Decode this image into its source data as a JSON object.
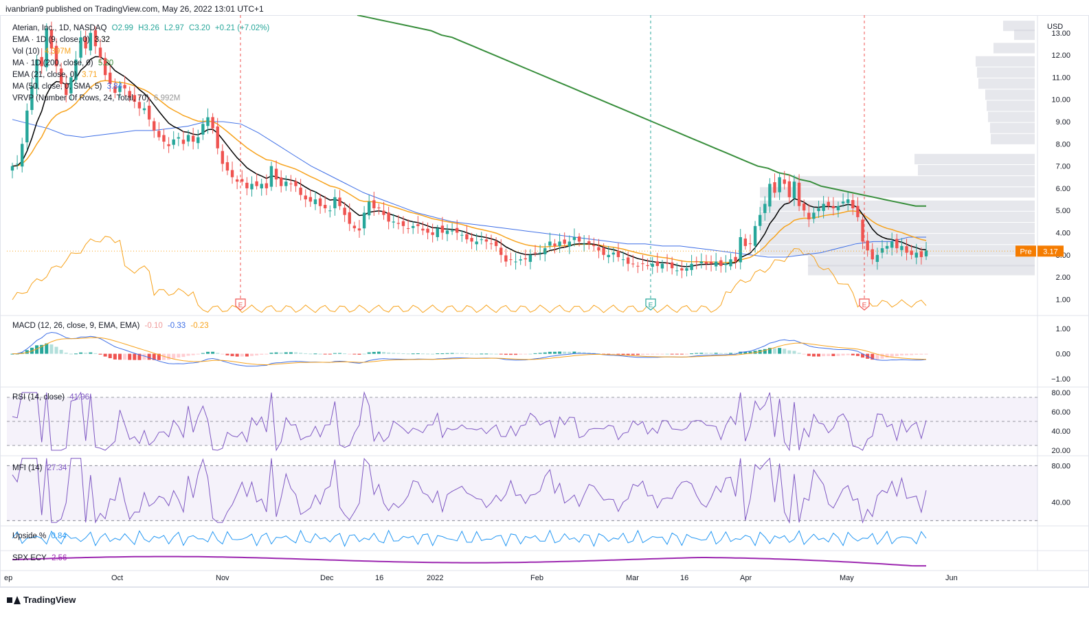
{
  "header": {
    "publisher": "ivanbrian9 published on TradingView.com, May 26, 2022 13:01 UTC+1"
  },
  "brand": {
    "name": "TradingView"
  },
  "colors": {
    "up": "#26a69a",
    "down": "#ef5350",
    "ema9": "#000000",
    "ema21": "#f7a21b",
    "ma50": "#3d6ee6",
    "ma200": "#388e3c",
    "vol": "#f7a21b",
    "rsi": "#7e57c2",
    "mfi": "#7e57c2",
    "upside": "#2196f3",
    "ecy": "#9c27b0",
    "vrvp": "#d1d4dc"
  },
  "legend": {
    "symbol_line": {
      "title": "Aterian, Inc., 1D, NASDAQ",
      "open": "O2.99",
      "high": "H3.26",
      "low": "L2.97",
      "close": "C3.20",
      "change": "+0.21 (+7.02%)"
    },
    "ema9": {
      "label": "EMA · 1D (9, close, 0)",
      "value": "3.32"
    },
    "vol": {
      "label": "Vol (10)",
      "value": "4.397M"
    },
    "ma200": {
      "label": "MA · 1D (200, close, 0)",
      "value": "5.20"
    },
    "ema21": {
      "label": "EMA (21, close, 0)",
      "value": "3.71"
    },
    "ma50": {
      "label": "MA (50, close, 0, SMA, 5)",
      "value": "3.84"
    },
    "vrvp": {
      "label": "VRVP (Number Of Rows, 24, Total, 70)",
      "value": "6.992M"
    },
    "macd": {
      "label": "MACD (12, 26, close, 9, EMA, EMA)",
      "hist": "-0.10",
      "macd": "-0.33",
      "signal": "-0.23"
    },
    "rsi": {
      "label": "RSI (14, close)",
      "value": "41.96"
    },
    "mfi": {
      "label": "MFI (14)",
      "value": "27.34"
    },
    "upside": {
      "label": "Upside %",
      "value": "0.84"
    },
    "ecy": {
      "label": "SPX ECY",
      "value": "2.56"
    }
  },
  "price_axis": {
    "currency": "USD",
    "ticks": [
      "13.00",
      "12.00",
      "11.00",
      "10.00",
      "9.00",
      "8.00",
      "7.00",
      "6.00",
      "5.00",
      "4.00",
      "3.00",
      "2.00",
      "1.00"
    ]
  },
  "pre_badge": {
    "label": "Pre",
    "value": "3.17"
  },
  "macd_axis": {
    "ticks": [
      "1.00",
      "0.00",
      "−1.00"
    ]
  },
  "rsi_axis": {
    "ticks": [
      "80.00",
      "60.00",
      "40.00",
      "20.00"
    ]
  },
  "mfi_axis": {
    "ticks": [
      "80.00",
      "40.00"
    ]
  },
  "time_axis": {
    "labels": [
      "ep",
      "Oct",
      "Nov",
      "Dec",
      "16",
      "2022",
      "Feb",
      "Mar",
      "16",
      "Apr",
      "May",
      "Jun"
    ]
  },
  "earnings": [
    {
      "label": "E",
      "date": "Nov",
      "kind": "down"
    },
    {
      "label": "E",
      "date": "Mar",
      "kind": "up"
    },
    {
      "label": "E",
      "date": "May",
      "kind": "down"
    }
  ],
  "chart_data": {
    "type": "candlestick",
    "symbol": "Aterian, Inc., 1D, NASDAQ",
    "start_date": "2021-09-01",
    "price_ylim": [
      0.3,
      13.8
    ],
    "close": [
      7.0,
      7.1,
      8.0,
      9.5,
      10.6,
      11.8,
      11.5,
      13.2,
      12.3,
      11.5,
      10.7,
      10.2,
      11.0,
      11.8,
      12.8,
      12.3,
      13.0,
      12.4,
      11.9,
      11.1,
      10.7,
      10.3,
      10.6,
      10.5,
      10.1,
      9.9,
      9.6,
      9.6,
      9.1,
      8.6,
      8.3,
      8.1,
      7.9,
      8.2,
      8.3,
      8.0,
      8.4,
      8.1,
      8.3,
      8.9,
      9.2,
      8.7,
      7.8,
      7.1,
      6.8,
      6.5,
      6.3,
      6.3,
      6.0,
      6.2,
      6.1,
      6.2,
      6.0,
      7.0,
      6.4,
      6.1,
      6.3,
      6.2,
      6.1,
      5.7,
      5.5,
      5.4,
      5.5,
      5.2,
      5.1,
      5.0,
      5.6,
      5.2,
      4.8,
      4.4,
      4.2,
      4.1,
      4.9,
      5.4,
      5.1,
      5.1,
      4.8,
      4.5,
      4.5,
      4.4,
      4.3,
      4.2,
      4.3,
      4.3,
      4.1,
      4.0,
      3.9,
      4.2,
      4.0,
      4.1,
      4.1,
      4.0,
      3.9,
      3.7,
      3.6,
      3.6,
      3.7,
      3.6,
      3.5,
      3.4,
      3.0,
      2.7,
      2.8,
      2.7,
      2.8,
      2.8,
      3.0,
      3.1,
      3.1,
      3.3,
      3.6,
      3.4,
      3.6,
      3.5,
      3.6,
      3.8,
      3.6,
      3.5,
      3.5,
      3.4,
      3.2,
      3.0,
      3.0,
      3.1,
      2.9,
      2.8,
      2.6,
      2.6,
      2.5,
      2.6,
      2.5,
      2.6,
      2.5,
      2.6,
      2.6,
      2.4,
      2.3,
      2.3,
      2.4,
      2.6,
      2.7,
      2.7,
      2.6,
      2.6,
      2.7,
      2.5,
      2.6,
      2.8,
      2.7,
      3.8,
      3.4,
      3.5,
      4.3,
      4.8,
      5.3,
      6.2,
      5.8,
      6.5,
      6.2,
      5.6,
      6.3,
      5.2,
      5.0,
      4.6,
      4.9,
      5.1,
      5.3,
      5.2,
      5.1,
      5.2,
      5.4,
      5.5,
      5.1,
      4.7,
      3.6,
      3.2,
      2.8,
      3.0,
      3.3,
      3.4,
      3.6,
      3.3,
      3.4,
      3.1,
      3.0,
      3.1,
      2.9,
      3.2
    ],
    "ma200": [
      13.8,
      13.7,
      13.6,
      13.5,
      13.4,
      13.3,
      13.2,
      13.1,
      12.9,
      12.8,
      12.6,
      12.4,
      12.2,
      12.0,
      11.8,
      11.6,
      11.4,
      11.2,
      11.0,
      10.8,
      10.6,
      10.4,
      10.2,
      10.0,
      9.8,
      9.6,
      9.4,
      9.2,
      9.0,
      8.8,
      8.6,
      8.4,
      8.2,
      8.0,
      7.8,
      7.6,
      7.4,
      7.2,
      7.0,
      6.9,
      6.7,
      6.6,
      6.4,
      6.3,
      6.1,
      6.0,
      5.9,
      5.8,
      5.7,
      5.6,
      5.5,
      5.4,
      5.3,
      5.2,
      5.2
    ],
    "ma50": [
      9.1,
      8.9,
      8.7,
      8.4,
      8.3,
      8.4,
      8.5,
      8.6,
      8.6,
      8.7,
      8.8,
      9.0,
      9.0,
      8.9,
      8.5,
      8.0,
      7.5,
      7.0,
      6.6,
      6.2,
      5.8,
      5.5,
      5.2,
      4.9,
      4.7,
      4.5,
      4.4,
      4.3,
      4.2,
      4.1,
      4.0,
      3.9,
      3.8,
      3.7,
      3.6,
      3.5,
      3.5,
      3.4,
      3.4,
      3.3,
      3.2,
      3.1,
      3.0,
      2.9,
      2.9,
      3.0,
      3.1,
      3.3,
      3.5,
      3.6,
      3.6,
      3.8,
      3.8
    ],
    "volume_units": "relative",
    "rsi_ylim": [
      15,
      85
    ],
    "mfi_ylim": [
      15,
      90
    ],
    "macd_ylim": [
      -1.3,
      1.5
    ],
    "earnings_dates": [
      "Nov",
      "Mar",
      "May"
    ]
  }
}
